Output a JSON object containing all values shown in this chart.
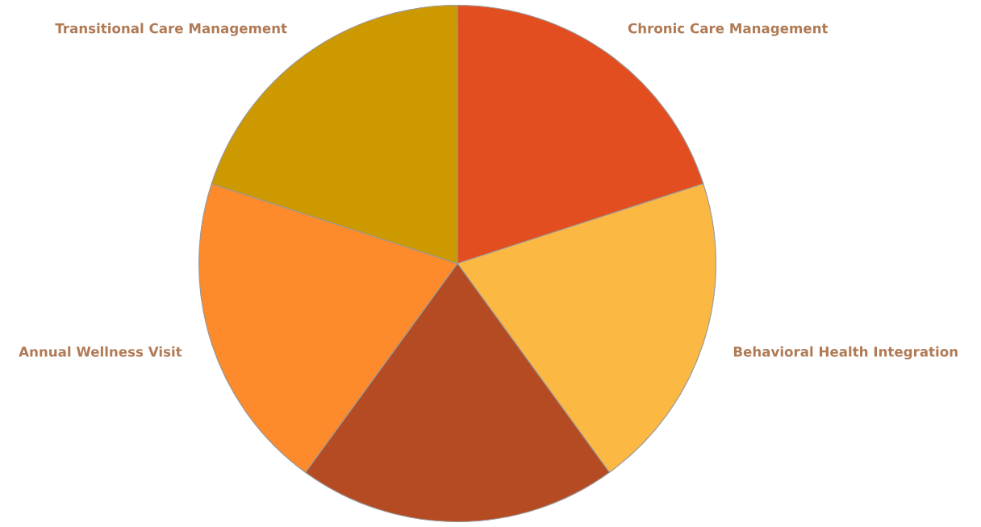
{
  "chart_data": {
    "type": "pie",
    "categories": [
      "Chronic Care Management",
      "Behavioral Health Integration",
      null,
      "Annual Wellness Visit",
      "Transitional Care Management"
    ],
    "values": [
      20,
      20,
      20,
      20,
      20
    ],
    "colors": [
      "#e34e20",
      "#fbb843",
      "#b54b22",
      "#fd8a2b",
      "#cc9900"
    ]
  }
}
